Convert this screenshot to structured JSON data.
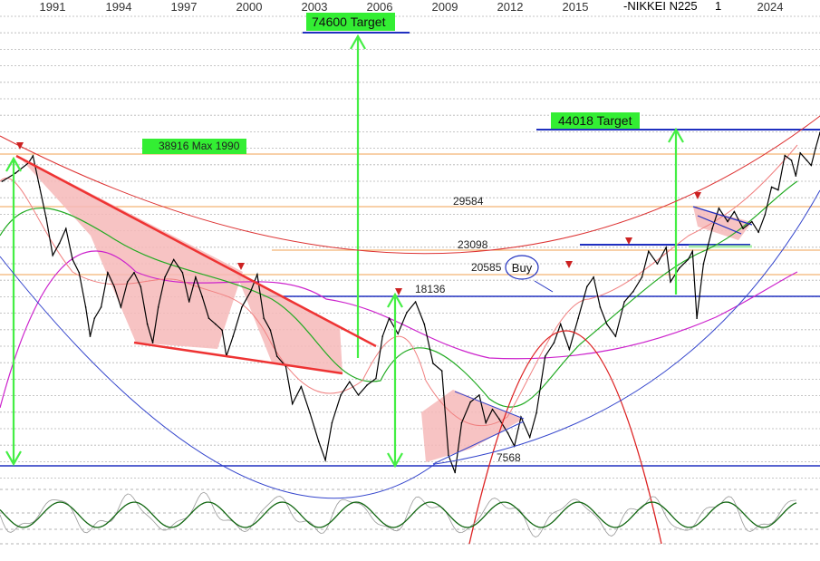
{
  "chart_data": {
    "type": "line",
    "title": "-NIKKEI N225",
    "title_suffix": "1",
    "x_ticks": [
      "1991",
      "1994",
      "1997",
      "2000",
      "2003",
      "2006",
      "2009",
      "2012",
      "2015",
      "2024"
    ],
    "x_range": [
      1988.5,
      2025.8
    ],
    "y_scale": "log",
    "y_range": [
      7000,
      76000
    ],
    "grid": true,
    "series": [
      {
        "points": [
          [
            1988.6,
            34000
          ],
          [
            1989.2,
            35500
          ],
          [
            1989.8,
            37500
          ],
          [
            1990.0,
            38916
          ],
          [
            1990.3,
            33000
          ],
          [
            1990.6,
            28000
          ],
          [
            1990.9,
            23000
          ],
          [
            1991.2,
            24500
          ],
          [
            1991.5,
            26500
          ],
          [
            1991.8,
            22500
          ],
          [
            1992.1,
            21000
          ],
          [
            1992.4,
            17500
          ],
          [
            1992.6,
            15000
          ],
          [
            1992.8,
            16500
          ],
          [
            1993.1,
            17500
          ],
          [
            1993.4,
            21000
          ],
          [
            1993.7,
            19500
          ],
          [
            1994.0,
            17500
          ],
          [
            1994.3,
            20000
          ],
          [
            1994.6,
            21000
          ],
          [
            1994.9,
            19500
          ],
          [
            1995.2,
            16000
          ],
          [
            1995.45,
            14500
          ],
          [
            1995.7,
            17500
          ],
          [
            1996.0,
            20500
          ],
          [
            1996.4,
            22500
          ],
          [
            1996.8,
            21000
          ],
          [
            1997.1,
            18000
          ],
          [
            1997.4,
            20500
          ],
          [
            1997.7,
            18500
          ],
          [
            1998.0,
            16500
          ],
          [
            1998.3,
            16000
          ],
          [
            1998.6,
            15500
          ],
          [
            1998.8,
            13500
          ],
          [
            1999.1,
            15000
          ],
          [
            1999.5,
            17500
          ],
          [
            1999.9,
            19000
          ],
          [
            2000.2,
            20800
          ],
          [
            2000.5,
            16500
          ],
          [
            2000.8,
            15500
          ],
          [
            2001.1,
            13500
          ],
          [
            2001.5,
            12800
          ],
          [
            2001.8,
            10500
          ],
          [
            2002.2,
            11500
          ],
          [
            2002.6,
            10000
          ],
          [
            2003.0,
            8600
          ],
          [
            2003.3,
            7800
          ],
          [
            2003.6,
            9500
          ],
          [
            2004.0,
            11000
          ],
          [
            2004.4,
            11800
          ],
          [
            2004.8,
            11000
          ],
          [
            2005.2,
            11600
          ],
          [
            2005.6,
            12000
          ],
          [
            2005.9,
            15000
          ],
          [
            2006.2,
            16500
          ],
          [
            2006.6,
            15200
          ],
          [
            2007.0,
            17000
          ],
          [
            2007.4,
            18000
          ],
          [
            2007.8,
            16000
          ],
          [
            2008.2,
            13000
          ],
          [
            2008.6,
            12500
          ],
          [
            2008.9,
            8000
          ],
          [
            2009.2,
            7300
          ],
          [
            2009.5,
            9500
          ],
          [
            2009.9,
            10600
          ],
          [
            2010.3,
            11000
          ],
          [
            2010.6,
            9500
          ],
          [
            2010.9,
            10200
          ],
          [
            2011.2,
            9700
          ],
          [
            2011.6,
            9000
          ],
          [
            2011.9,
            8400
          ],
          [
            2012.2,
            9800
          ],
          [
            2012.6,
            8800
          ],
          [
            2012.9,
            10000
          ],
          [
            2013.3,
            13500
          ],
          [
            2013.7,
            14500
          ],
          [
            2014.0,
            16000
          ],
          [
            2014.4,
            14000
          ],
          [
            2014.8,
            16500
          ],
          [
            2015.2,
            19500
          ],
          [
            2015.5,
            20500
          ],
          [
            2015.8,
            17500
          ],
          [
            2016.1,
            16000
          ],
          [
            2016.5,
            15000
          ],
          [
            2016.9,
            18000
          ],
          [
            2017.3,
            19000
          ],
          [
            2017.7,
            20500
          ],
          [
            2018.0,
            23500
          ],
          [
            2018.4,
            22000
          ],
          [
            2018.8,
            24000
          ],
          [
            2019.0,
            20000
          ],
          [
            2019.4,
            21500
          ],
          [
            2019.8,
            22500
          ],
          [
            2020.0,
            23500
          ],
          [
            2020.2,
            16500
          ],
          [
            2020.5,
            22000
          ],
          [
            2020.9,
            26500
          ],
          [
            2021.2,
            29500
          ],
          [
            2021.6,
            27500
          ],
          [
            2021.9,
            29000
          ],
          [
            2022.3,
            26500
          ],
          [
            2022.7,
            27500
          ],
          [
            2023.0,
            26000
          ],
          [
            2023.3,
            28500
          ],
          [
            2023.6,
            33000
          ],
          [
            2023.9,
            32500
          ],
          [
            2024.2,
            39000
          ],
          [
            2024.5,
            38000
          ],
          [
            2024.7,
            35000
          ],
          [
            2024.9,
            39500
          ],
          [
            2025.2,
            38000
          ],
          [
            2025.4,
            37000
          ],
          [
            2025.6,
            40500
          ],
          [
            2025.8,
            44000
          ]
        ]
      }
    ],
    "levels": [
      {
        "label": "38916 Max 1990",
        "value": 38916,
        "color": "#f0a050"
      },
      {
        "label": "29584",
        "value": 29584,
        "color": "#f0a050"
      },
      {
        "label": "23098",
        "value": 23098,
        "color": "#f0a050"
      },
      {
        "label": "20585",
        "value": 20585,
        "color": "#f0a050"
      },
      {
        "label": "18136",
        "value": 18136,
        "color": "#2030c0"
      },
      {
        "label": "7568",
        "value": 7568,
        "color": "#2030c0"
      }
    ],
    "targets": [
      {
        "label": "74600 Target",
        "value": 74600
      },
      {
        "label": "44018 Target",
        "value": 44018
      }
    ],
    "annotations": [
      {
        "label": "Buy"
      }
    ],
    "colors": {
      "price": "#000000",
      "target_box": "#33ee33",
      "arrow": "#44ee44",
      "trendline": "#ee3333",
      "pattern_fill": "#f6b8b8",
      "ma_pink": "#f08080",
      "ma_green": "#22aa22",
      "ma_magenta": "#cc22cc",
      "blue_line": "#2030c0",
      "orange_line": "#f0a050"
    }
  }
}
